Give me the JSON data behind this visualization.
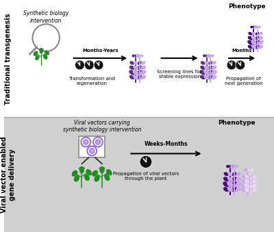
{
  "bg_top": "#ffffff",
  "bg_bottom": "#d3d3d3",
  "title_top_left": "Traditional transgenesis",
  "title_bottom_left": "Viral vector enabled\ngene delivery",
  "text_synbio": "Synthetic biology\nintervention",
  "text_viral_vectors": "Viral vectors carrying\nsynthetic biology intervention",
  "text_months_years": "Months-Years",
  "text_months": "Months",
  "text_weeks_months": "Weeks-Months",
  "text_transform": "Transformation and\nregeneration",
  "text_screen": "Screening lines for\nstable expression",
  "text_prop": "Propagation of\nnext generation",
  "text_prop2": "Propagation of viral vectors\nthrough the plant",
  "text_phenotype1": "Phenotype",
  "text_phenotype2": "Phenotype",
  "green": "#228B22",
  "dark_purple": "#4B0082",
  "light_purple": "#C8A8E9",
  "medium_purple": "#7B4FBF",
  "black": "#111111",
  "white": "#ffffff",
  "gray": "#cccccc"
}
